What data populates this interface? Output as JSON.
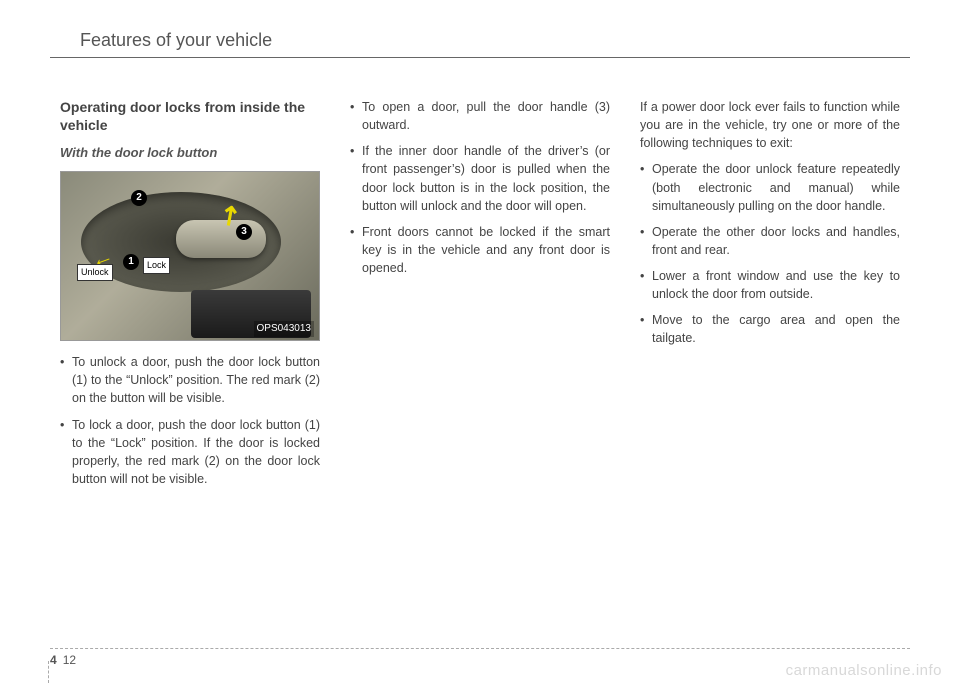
{
  "header": "Features of your vehicle",
  "section_title": "Operating door locks from inside the vehicle",
  "subtitle": "With the door lock button",
  "figure": {
    "code": "OPS043013",
    "markers": [
      "1",
      "2",
      "3"
    ],
    "labels": {
      "unlock": "Unlock",
      "lock": "Lock"
    }
  },
  "col1_bullets": [
    "To unlock a door, push the door lock button (1) to the “Unlock” position. The red mark (2) on the button will be visible.",
    "To lock a door, push the door lock button (1) to the “Lock” position. If the door is locked properly, the red mark (2) on the door lock button will not be visible."
  ],
  "col2_bullets": [
    "To open a door, pull the door handle (3) outward.",
    "If the inner door handle of the driver’s (or front passenger’s) door is pulled when the door lock button is in the lock position, the button will unlock and the door will open.",
    "Front doors cannot be locked if the smart key is in the vehicle and any front door is opened."
  ],
  "col3_intro": "If a power door lock ever fails to function while you are in the vehicle, try one or more of the following techniques to exit:",
  "col3_bullets": [
    "Operate the door unlock feature repeatedly (both electronic and manual) while simultaneously pulling on the door handle.",
    "Operate the other door locks and handles, front and rear.",
    "Lower a front window and use the key to unlock the door from outside.",
    "Move to the cargo area and open the tailgate."
  ],
  "page": {
    "chapter": "4",
    "number": "12"
  },
  "watermark": "carmanualsonline.info"
}
